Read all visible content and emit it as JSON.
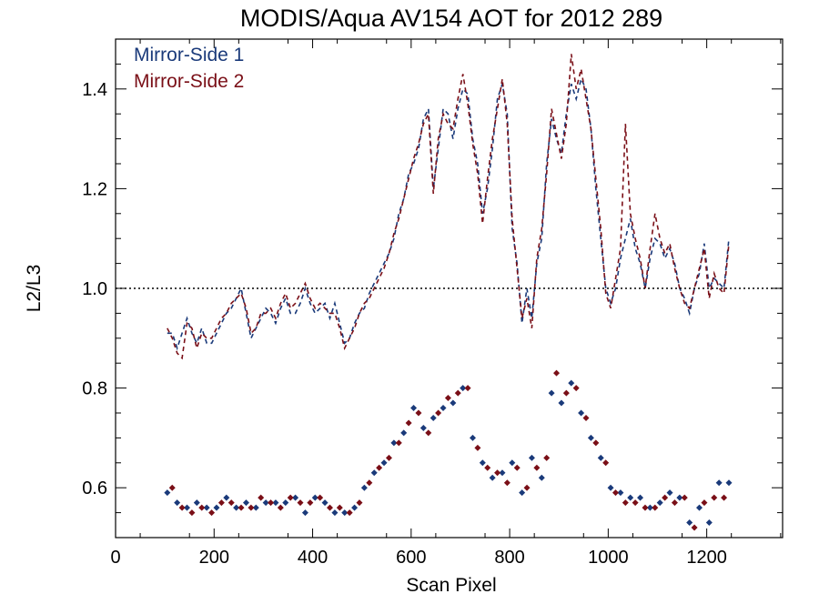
{
  "chart_data": {
    "type": "scatter",
    "title": "MODIS/Aqua AV154 AOT for 2012 289",
    "xlabel": "Scan Pixel",
    "ylabel": "L2/L3",
    "xlim": [
      0,
      1354
    ],
    "ylim": [
      0.5,
      1.5
    ],
    "xticks": [
      0,
      200,
      400,
      600,
      800,
      1000,
      1200
    ],
    "yticks": [
      0.6,
      0.8,
      1.0,
      1.2,
      1.4
    ],
    "ytick_labels": [
      "0.6",
      "0.8",
      "1.0",
      "1.2",
      "1.4"
    ],
    "reference_line": 1.0,
    "legend_position": "top-left",
    "colors": {
      "ms1": "#1a3a7a",
      "ms2": "#7a0f17"
    },
    "series": [
      {
        "name": "Mirror-Side 1",
        "style": "dashed-line",
        "x": [
          105,
          115,
          125,
          135,
          145,
          155,
          165,
          175,
          185,
          195,
          205,
          215,
          225,
          235,
          245,
          255,
          265,
          275,
          285,
          295,
          305,
          315,
          325,
          335,
          345,
          355,
          365,
          375,
          385,
          395,
          405,
          415,
          425,
          435,
          445,
          455,
          465,
          475,
          485,
          495,
          505,
          515,
          525,
          535,
          545,
          555,
          565,
          575,
          585,
          595,
          605,
          615,
          625,
          635,
          645,
          655,
          665,
          675,
          685,
          695,
          705,
          715,
          725,
          735,
          745,
          755,
          765,
          775,
          785,
          795,
          805,
          815,
          825,
          835,
          845,
          855,
          865,
          875,
          885,
          895,
          905,
          915,
          925,
          935,
          945,
          955,
          965,
          975,
          985,
          995,
          1005,
          1015,
          1025,
          1035,
          1045,
          1055,
          1065,
          1075,
          1085,
          1095,
          1105,
          1115,
          1125,
          1135,
          1145,
          1155,
          1165,
          1175,
          1185,
          1195,
          1205,
          1215,
          1225,
          1235,
          1245
        ],
        "y": [
          0.91,
          0.91,
          0.88,
          0.91,
          0.94,
          0.91,
          0.89,
          0.92,
          0.89,
          0.89,
          0.91,
          0.93,
          0.95,
          0.96,
          0.98,
          1.0,
          0.95,
          0.9,
          0.92,
          0.94,
          0.96,
          0.95,
          0.93,
          0.96,
          0.98,
          0.95,
          0.95,
          0.97,
          1.0,
          0.97,
          0.95,
          0.96,
          0.97,
          0.94,
          0.97,
          0.93,
          0.89,
          0.9,
          0.93,
          0.95,
          0.96,
          0.99,
          1.01,
          1.03,
          1.05,
          1.07,
          1.1,
          1.15,
          1.18,
          1.23,
          1.25,
          1.28,
          1.34,
          1.36,
          1.2,
          1.28,
          1.36,
          1.35,
          1.3,
          1.36,
          1.4,
          1.39,
          1.3,
          1.25,
          1.15,
          1.2,
          1.28,
          1.38,
          1.41,
          1.35,
          1.12,
          1.05,
          0.93,
          1.0,
          0.94,
          1.05,
          1.1,
          1.25,
          1.34,
          1.3,
          1.27,
          1.35,
          1.41,
          1.38,
          1.42,
          1.4,
          1.32,
          1.2,
          1.1,
          1.0,
          0.97,
          1.0,
          1.06,
          1.1,
          1.14,
          1.08,
          1.05,
          1.0,
          1.06,
          1.1,
          1.09,
          1.06,
          1.08,
          1.05,
          1.0,
          0.98,
          0.95,
          1.0,
          1.03,
          1.09,
          1.0,
          1.02,
          1.01,
          1.0,
          1.1
        ]
      },
      {
        "name": "Mirror-Side 2",
        "style": "dashed-line",
        "x": [
          105,
          115,
          125,
          135,
          145,
          155,
          165,
          175,
          185,
          195,
          205,
          215,
          225,
          235,
          245,
          255,
          265,
          275,
          285,
          295,
          305,
          315,
          325,
          335,
          345,
          355,
          365,
          375,
          385,
          395,
          405,
          415,
          425,
          435,
          445,
          455,
          465,
          475,
          485,
          495,
          505,
          515,
          525,
          535,
          545,
          555,
          565,
          575,
          585,
          595,
          605,
          615,
          625,
          635,
          645,
          655,
          665,
          675,
          685,
          695,
          705,
          715,
          725,
          735,
          745,
          755,
          765,
          775,
          785,
          795,
          805,
          815,
          825,
          835,
          845,
          855,
          865,
          875,
          885,
          895,
          905,
          915,
          925,
          935,
          945,
          955,
          965,
          975,
          985,
          995,
          1005,
          1015,
          1025,
          1035,
          1045,
          1055,
          1065,
          1075,
          1085,
          1095,
          1105,
          1115,
          1125,
          1135,
          1145,
          1155,
          1165,
          1175,
          1185,
          1195,
          1205,
          1215,
          1225,
          1235,
          1245
        ],
        "y": [
          0.92,
          0.9,
          0.87,
          0.86,
          0.93,
          0.92,
          0.88,
          0.91,
          0.9,
          0.9,
          0.92,
          0.94,
          0.95,
          0.97,
          0.98,
          0.99,
          0.96,
          0.91,
          0.92,
          0.95,
          0.95,
          0.96,
          0.94,
          0.97,
          0.99,
          0.96,
          0.97,
          0.99,
          1.01,
          0.98,
          0.96,
          0.97,
          0.96,
          0.95,
          0.95,
          0.92,
          0.88,
          0.9,
          0.92,
          0.95,
          0.97,
          0.98,
          1.0,
          1.02,
          1.04,
          1.07,
          1.11,
          1.14,
          1.18,
          1.22,
          1.26,
          1.29,
          1.33,
          1.35,
          1.19,
          1.3,
          1.35,
          1.33,
          1.32,
          1.38,
          1.43,
          1.37,
          1.29,
          1.23,
          1.13,
          1.22,
          1.3,
          1.36,
          1.42,
          1.33,
          1.14,
          1.04,
          0.94,
          0.98,
          0.92,
          1.06,
          1.12,
          1.23,
          1.36,
          1.31,
          1.26,
          1.33,
          1.47,
          1.4,
          1.44,
          1.38,
          1.32,
          1.22,
          1.12,
          0.99,
          0.96,
          1.02,
          1.08,
          1.33,
          1.15,
          1.1,
          1.06,
          1.0,
          1.08,
          1.15,
          1.1,
          1.07,
          1.09,
          1.04,
          1.0,
          0.97,
          0.96,
          1.0,
          1.04,
          1.08,
          0.98,
          1.03,
          1.0,
          0.99,
          1.09
        ]
      },
      {
        "name": "Mirror-Side 1 (points)",
        "style": "scatter",
        "x": [
          105,
          125,
          145,
          165,
          185,
          205,
          225,
          245,
          265,
          285,
          305,
          325,
          345,
          365,
          385,
          405,
          425,
          445,
          465,
          485,
          505,
          525,
          545,
          565,
          585,
          605,
          625,
          645,
          665,
          685,
          705,
          725,
          745,
          765,
          785,
          805,
          825,
          845,
          865,
          885,
          905,
          925,
          945,
          965,
          985,
          1005,
          1025,
          1045,
          1065,
          1085,
          1105,
          1125,
          1145,
          1165,
          1185,
          1205,
          1225,
          1245
        ],
        "y": [
          0.59,
          0.57,
          0.56,
          0.57,
          0.56,
          0.56,
          0.58,
          0.56,
          0.57,
          0.56,
          0.57,
          0.57,
          0.57,
          0.58,
          0.55,
          0.58,
          0.57,
          0.55,
          0.55,
          0.56,
          0.6,
          0.63,
          0.65,
          0.69,
          0.71,
          0.76,
          0.72,
          0.74,
          0.76,
          0.77,
          0.8,
          0.7,
          0.65,
          0.62,
          0.63,
          0.65,
          0.59,
          0.66,
          0.62,
          0.79,
          0.77,
          0.81,
          0.75,
          0.7,
          0.66,
          0.6,
          0.59,
          0.58,
          0.58,
          0.56,
          0.57,
          0.59,
          0.58,
          0.53,
          0.56,
          0.53,
          0.61,
          0.61
        ]
      },
      {
        "name": "Mirror-Side 2 (points)",
        "style": "scatter",
        "x": [
          115,
          135,
          155,
          175,
          195,
          215,
          235,
          255,
          275,
          295,
          315,
          335,
          355,
          375,
          395,
          415,
          435,
          455,
          475,
          495,
          515,
          535,
          555,
          575,
          595,
          615,
          635,
          655,
          675,
          695,
          715,
          735,
          755,
          775,
          795,
          815,
          835,
          855,
          875,
          895,
          915,
          935,
          955,
          975,
          995,
          1015,
          1035,
          1055,
          1075,
          1095,
          1115,
          1135,
          1155,
          1175,
          1195,
          1215,
          1235
        ],
        "y": [
          0.6,
          0.56,
          0.55,
          0.56,
          0.55,
          0.57,
          0.57,
          0.56,
          0.56,
          0.58,
          0.57,
          0.56,
          0.58,
          0.57,
          0.57,
          0.58,
          0.56,
          0.56,
          0.55,
          0.57,
          0.61,
          0.64,
          0.66,
          0.69,
          0.73,
          0.75,
          0.71,
          0.75,
          0.78,
          0.79,
          0.8,
          0.68,
          0.64,
          0.63,
          0.61,
          0.64,
          0.6,
          0.64,
          0.66,
          0.83,
          0.79,
          0.8,
          0.74,
          0.69,
          0.65,
          0.59,
          0.57,
          0.57,
          0.56,
          0.56,
          0.58,
          0.57,
          0.58,
          0.52,
          0.57,
          0.58,
          0.58
        ]
      }
    ]
  }
}
